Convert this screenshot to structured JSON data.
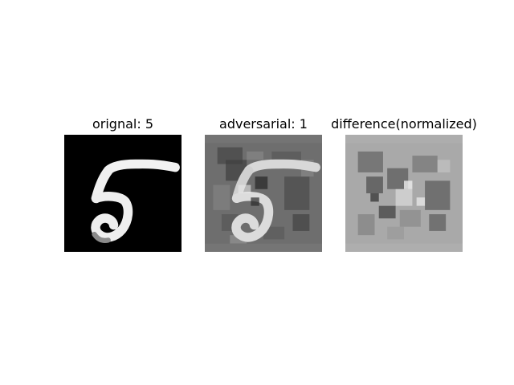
{
  "panels": [
    {
      "title": "orignal: 5",
      "image": "original handwritten digit five, white stroke on black background"
    },
    {
      "title": "adversarial: 1",
      "image": "adversarial version of the digit five with gray noise pattern"
    },
    {
      "title": "difference(normalized)",
      "image": "normalized difference noise pattern in gray tones"
    }
  ]
}
